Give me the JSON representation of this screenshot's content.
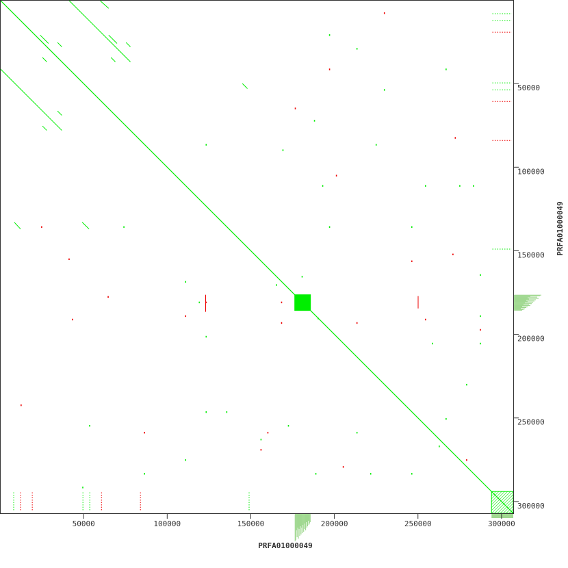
{
  "chart_data": {
    "type": "scatter",
    "subtype": "dot-plot",
    "xlabel": "PRFA01000049",
    "ylabel": "PRFA01000049",
    "xlim": [
      0,
      307000
    ],
    "ylim": [
      0,
      307000
    ],
    "y_inverted": true,
    "grid": false,
    "x_ticks": [
      "50000",
      "100000",
      "150000",
      "200000",
      "250000",
      "300000"
    ],
    "y_ticks": [
      "50000",
      "100000",
      "150000",
      "200000",
      "250000",
      "300000"
    ],
    "colors": {
      "forward": "#00ee00",
      "reverse": "#ee0000",
      "coverage": "#a0d890",
      "axis": "#333333"
    },
    "segments": [
      {
        "x1": 0,
        "y1": 0,
        "x2": 307000,
        "y2": 307000,
        "strand": "forward"
      },
      {
        "x1": 41000,
        "y1": 0,
        "x2": 78000,
        "y2": 37000,
        "strand": "forward"
      },
      {
        "x1": 0,
        "y1": 41000,
        "x2": 37000,
        "y2": 78000,
        "strand": "forward"
      },
      {
        "x1": 34400,
        "y1": 25400,
        "x2": 37000,
        "y2": 28000,
        "strand": "forward"
      },
      {
        "x1": 75400,
        "y1": 25400,
        "x2": 78000,
        "y2": 28000,
        "strand": "forward"
      },
      {
        "x1": 25400,
        "y1": 34400,
        "x2": 28000,
        "y2": 37000,
        "strand": "forward"
      },
      {
        "x1": 25400,
        "y1": 75400,
        "x2": 28000,
        "y2": 78000,
        "strand": "forward"
      },
      {
        "x1": 34400,
        "y1": 66400,
        "x2": 37000,
        "y2": 69000,
        "strand": "forward"
      },
      {
        "x1": 66400,
        "y1": 34400,
        "x2": 69000,
        "y2": 37000,
        "strand": "forward"
      },
      {
        "x1": 24000,
        "y1": 21000,
        "x2": 29000,
        "y2": 26000,
        "strand": "forward"
      },
      {
        "x1": 65000,
        "y1": 21000,
        "x2": 70000,
        "y2": 26000,
        "strand": "forward"
      },
      {
        "x1": 8600,
        "y1": 133000,
        "x2": 12300,
        "y2": 137000,
        "strand": "forward"
      },
      {
        "x1": 49200,
        "y1": 133000,
        "x2": 53300,
        "y2": 137000,
        "strand": "forward"
      },
      {
        "x1": 60000,
        "y1": 500,
        "x2": 65000,
        "y2": 5000,
        "strand": "forward"
      },
      {
        "x1": 145000,
        "y1": 50000,
        "x2": 148000,
        "y2": 53000,
        "strand": "forward"
      },
      {
        "x1": 250100,
        "y1": 177100,
        "x2": 250100,
        "y2": 184500,
        "strand": "reverse"
      },
      {
        "x1": 123000,
        "y1": 176300,
        "x2": 123000,
        "y2": 186500,
        "strand": "reverse"
      },
      {
        "x1": 294500,
        "y1": 8200,
        "x2": 306000,
        "y2": 8200,
        "strand": "forward",
        "dotted": true
      },
      {
        "x1": 294500,
        "y1": 12300,
        "x2": 306000,
        "y2": 12300,
        "strand": "forward",
        "dotted": true
      },
      {
        "x1": 294500,
        "y1": 19300,
        "x2": 306000,
        "y2": 19300,
        "strand": "reverse",
        "dotted": true
      },
      {
        "x1": 294500,
        "y1": 49600,
        "x2": 306000,
        "y2": 49600,
        "strand": "forward",
        "dotted": true
      },
      {
        "x1": 294500,
        "y1": 53700,
        "x2": 306000,
        "y2": 53700,
        "strand": "forward",
        "dotted": true
      },
      {
        "x1": 294500,
        "y1": 60700,
        "x2": 306000,
        "y2": 60700,
        "strand": "reverse",
        "dotted": true
      },
      {
        "x1": 294500,
        "y1": 84000,
        "x2": 306000,
        "y2": 84000,
        "strand": "reverse",
        "dotted": true
      },
      {
        "x1": 294500,
        "y1": 149000,
        "x2": 306000,
        "y2": 149000,
        "strand": "forward",
        "dotted": true
      },
      {
        "x1": 8200,
        "y1": 294500,
        "x2": 8200,
        "y2": 306000,
        "strand": "forward",
        "dotted": true
      },
      {
        "x1": 12300,
        "y1": 294500,
        "x2": 12300,
        "y2": 306000,
        "strand": "reverse",
        "dotted": true
      },
      {
        "x1": 19300,
        "y1": 294500,
        "x2": 19300,
        "y2": 306000,
        "strand": "reverse",
        "dotted": true
      },
      {
        "x1": 49600,
        "y1": 294500,
        "x2": 49600,
        "y2": 306000,
        "strand": "forward",
        "dotted": true
      },
      {
        "x1": 53700,
        "y1": 294500,
        "x2": 53700,
        "y2": 306000,
        "strand": "forward",
        "dotted": true
      },
      {
        "x1": 60700,
        "y1": 294500,
        "x2": 60700,
        "y2": 306000,
        "strand": "reverse",
        "dotted": true
      },
      {
        "x1": 84000,
        "y1": 294500,
        "x2": 84000,
        "y2": 306000,
        "strand": "reverse",
        "dotted": true
      },
      {
        "x1": 149000,
        "y1": 294500,
        "x2": 149000,
        "y2": 306000,
        "strand": "forward",
        "dotted": true
      }
    ],
    "blocks": [
      {
        "x1": 176300,
        "y1": 176300,
        "x2": 185700,
        "y2": 185700,
        "strand": "forward",
        "fill": "solid"
      },
      {
        "x1": 294000,
        "y1": 294000,
        "x2": 307000,
        "y2": 307000,
        "strand": "forward",
        "fill": "hatched"
      }
    ],
    "points": [
      [
        123000,
        86100,
        "forward"
      ],
      [
        168920,
        89380,
        "forward"
      ],
      [
        187780,
        71750,
        "forward"
      ],
      [
        192700,
        110700,
        "forward"
      ],
      [
        196800,
        135300,
        "forward"
      ],
      [
        224680,
        86100,
        "forward"
      ],
      [
        246000,
        135300,
        "forward"
      ],
      [
        254200,
        110700,
        "forward"
      ],
      [
        274700,
        110700,
        "forward"
      ],
      [
        282900,
        110700,
        "forward"
      ],
      [
        287000,
        164000,
        "forward"
      ],
      [
        262400,
        266500,
        "forward"
      ],
      [
        221400,
        282900,
        "forward"
      ],
      [
        246000,
        282900,
        "forward"
      ],
      [
        123000,
        246000,
        "forward"
      ],
      [
        155800,
        262400,
        "forward"
      ],
      [
        172200,
        254200,
        "forward"
      ],
      [
        110700,
        274700,
        "forward"
      ],
      [
        86100,
        282900,
        "forward"
      ],
      [
        110700,
        168100,
        "forward"
      ],
      [
        118900,
        180400,
        "forward"
      ],
      [
        73800,
        135300,
        "forward"
      ],
      [
        123000,
        200900,
        "forward"
      ],
      [
        49200,
        291100,
        "forward"
      ],
      [
        53300,
        254200,
        "forward"
      ],
      [
        287000,
        188600,
        "forward"
      ],
      [
        278800,
        229600,
        "forward"
      ],
      [
        266500,
        250100,
        "forward"
      ],
      [
        213200,
        258300,
        "forward"
      ],
      [
        188600,
        282900,
        "forward"
      ],
      [
        135300,
        246000,
        "forward"
      ],
      [
        229600,
        53300,
        "forward"
      ],
      [
        196800,
        20500,
        "forward"
      ],
      [
        213200,
        28700,
        "forward"
      ],
      [
        266500,
        41000,
        "forward"
      ],
      [
        258300,
        205000,
        "forward"
      ],
      [
        287000,
        205000,
        "forward"
      ],
      [
        165000,
        170000,
        "forward"
      ],
      [
        180400,
        165000,
        "forward"
      ],
      [
        190000,
        190000,
        "forward"
      ],
      [
        168100,
        180400,
        "reverse"
      ],
      [
        123000,
        180400,
        "reverse"
      ],
      [
        64370,
        177120,
        "reverse"
      ],
      [
        41000,
        154570,
        "reverse"
      ],
      [
        200900,
        104550,
        "reverse"
      ],
      [
        213200,
        192700,
        "reverse"
      ],
      [
        176300,
        64370,
        "reverse"
      ],
      [
        246000,
        155800,
        "reverse"
      ],
      [
        110700,
        188600,
        "reverse"
      ],
      [
        168100,
        192700,
        "reverse"
      ],
      [
        254200,
        190650,
        "reverse"
      ],
      [
        270600,
        151700,
        "reverse"
      ],
      [
        278800,
        274700,
        "reverse"
      ],
      [
        229600,
        7380,
        "reverse"
      ],
      [
        196800,
        41000,
        "reverse"
      ],
      [
        287000,
        196800,
        "reverse"
      ],
      [
        159900,
        258300,
        "reverse"
      ],
      [
        155800,
        268550,
        "reverse"
      ],
      [
        205000,
        278800,
        "reverse"
      ],
      [
        24600,
        135300,
        "reverse"
      ],
      [
        43050,
        190650,
        "reverse"
      ],
      [
        12300,
        241900,
        "reverse"
      ],
      [
        86100,
        258300,
        "reverse"
      ],
      [
        272000,
        82000,
        "reverse"
      ]
    ],
    "coverage_histogram": {
      "range": [
        176300,
        185700
      ],
      "values": [
        1.0,
        0.95,
        0.6,
        0.85,
        0.5,
        0.9,
        0.55,
        0.8,
        0.45,
        0.75,
        0.5,
        0.7,
        0.4,
        0.65,
        0.55,
        0.35,
        0.6,
        0.3,
        0.5,
        0.45,
        0.25,
        0.4,
        0.35,
        0.3
      ]
    }
  }
}
